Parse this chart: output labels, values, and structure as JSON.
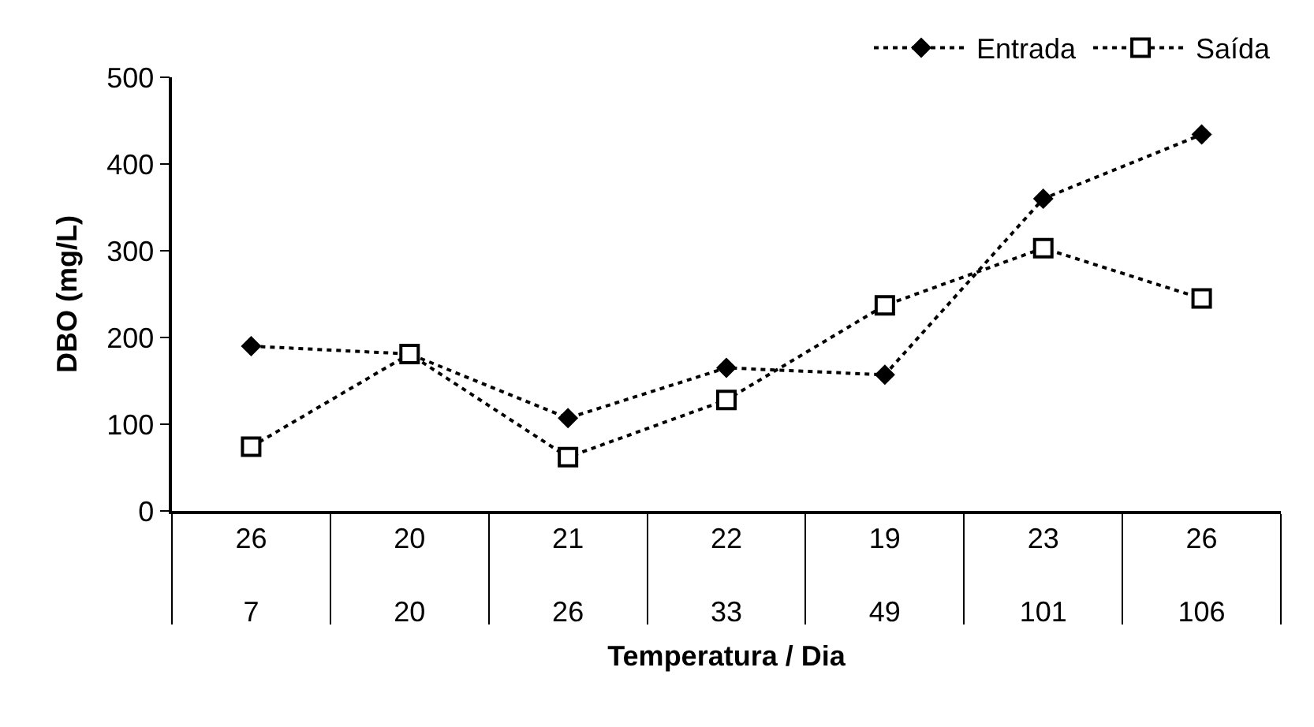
{
  "chart_data": {
    "type": "line",
    "xlabel": "Temperatura / Dia",
    "ylabel": "DBO (mg/L)",
    "categories": [
      "26\n7",
      "20\n20",
      "21\n26",
      "22\n33",
      "19\n49",
      "23\n101",
      "26\n106"
    ],
    "series": [
      {
        "name": "Entrada",
        "color": "#000000",
        "marker": "diamond",
        "values": [
          190,
          181,
          107,
          165,
          157,
          360,
          434
        ]
      },
      {
        "name": "Saída",
        "color": "#000000",
        "marker": "square",
        "values": [
          74,
          181,
          62,
          128,
          237,
          303,
          245
        ]
      }
    ],
    "ylim": [
      0,
      500
    ],
    "yticks": [
      0,
      100,
      200,
      300,
      400,
      500
    ],
    "grid": false,
    "legend": "top right",
    "line_style": "dotted"
  }
}
